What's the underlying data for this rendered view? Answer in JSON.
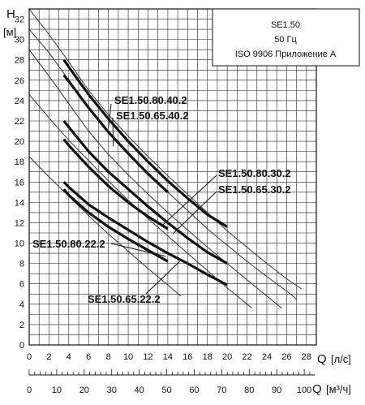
{
  "chart_data": {
    "type": "line",
    "y_axis": {
      "label": "H",
      "unit": "[м]",
      "range": [
        0,
        33
      ],
      "ticks": [
        0,
        2,
        4,
        6,
        8,
        10,
        12,
        14,
        16,
        18,
        20,
        22,
        24,
        26,
        28,
        30,
        32
      ]
    },
    "x_axis": {
      "label": "Q",
      "unit": "[л/с]",
      "range": [
        0,
        29
      ],
      "ticks": [
        0,
        2,
        4,
        6,
        8,
        10,
        12,
        14,
        16,
        18,
        20,
        22,
        24,
        26,
        28
      ]
    },
    "x_axis_secondary": {
      "label": "Q",
      "unit": "[м³/ч]",
      "ticks": [
        0,
        10,
        20,
        30,
        40,
        50,
        60,
        70,
        80,
        90,
        100
      ]
    },
    "info_box": [
      "SE1.50",
      "50 Гц",
      "ISO 9906 Приложение А"
    ],
    "grid": true,
    "thin_curves": [
      {
        "x": [
          0,
          2,
          4,
          6,
          8,
          10,
          12,
          14,
          16,
          18,
          20,
          22,
          24,
          26,
          27.5
        ],
        "y": [
          33,
          30.5,
          27.8,
          25,
          22.6,
          20.5,
          18.5,
          16.6,
          14.8,
          13,
          11.2,
          9.6,
          8,
          6.5,
          5.5
        ]
      },
      {
        "x": [
          0,
          2,
          4,
          6,
          8,
          10,
          12,
          14,
          16,
          18,
          20,
          22,
          24,
          26,
          27
        ],
        "y": [
          31,
          28.7,
          26,
          23.4,
          21,
          18.9,
          16.9,
          15,
          13.2,
          11.4,
          9.8,
          8.2,
          6.7,
          5.3,
          4.5
        ]
      },
      {
        "x": [
          0,
          2,
          4,
          6,
          8,
          10,
          12,
          14,
          16,
          18,
          20,
          22,
          24,
          25.5
        ],
        "y": [
          29,
          26.4,
          23.7,
          21,
          18.7,
          16.7,
          14.8,
          13,
          11.3,
          9.6,
          8,
          6.4,
          4.8,
          3.6
        ]
      },
      {
        "x": [
          0,
          2,
          4,
          6,
          8,
          10,
          12,
          14,
          16,
          18,
          20,
          22,
          22.5
        ],
        "y": [
          24.6,
          22.3,
          20.1,
          18.1,
          16.1,
          14.2,
          12.4,
          10.7,
          9,
          7.3,
          5.6,
          4,
          3.6
        ]
      },
      {
        "x": [
          0,
          2,
          4,
          6,
          8,
          10,
          12,
          14,
          15.3
        ],
        "y": [
          18.5,
          16.5,
          14.6,
          12.7,
          10.9,
          9.2,
          7.5,
          5.9,
          4.8
        ]
      }
    ],
    "series": [
      {
        "name": "SE1.50.80.40.2",
        "x": [
          3.5,
          4,
          6,
          8,
          10,
          12,
          14,
          16,
          18,
          20
        ],
        "y": [
          28,
          27.3,
          24.6,
          22.2,
          20,
          18,
          16.1,
          14.4,
          12.8,
          11.6
        ]
      },
      {
        "name": "SE1.50.65.40.2",
        "x": [
          3.5,
          4,
          6,
          8,
          10,
          12,
          14
        ],
        "y": [
          26.5,
          25.9,
          23.3,
          20.9,
          18.8,
          16.8,
          15
        ]
      },
      {
        "name": "SE1.50.80.30.2",
        "x": [
          3.5,
          4,
          6,
          8,
          10,
          12,
          14,
          16,
          18,
          20
        ],
        "y": [
          22,
          21.4,
          19,
          17,
          15.3,
          13.6,
          12,
          10.5,
          9.1,
          8
        ]
      },
      {
        "name": "SE1.50.65.30.2",
        "x": [
          3.5,
          4,
          6,
          8,
          10,
          12,
          14
        ],
        "y": [
          20.2,
          19.6,
          17.5,
          15.6,
          14,
          12.6,
          11.4
        ]
      },
      {
        "name": "SE1.50.80.22.2",
        "x": [
          3.5,
          4,
          6,
          8,
          10,
          12,
          14,
          16,
          18,
          20
        ],
        "y": [
          16,
          15.5,
          13.8,
          12.5,
          11.3,
          10.1,
          9,
          8,
          6.9,
          5.9
        ]
      },
      {
        "name": "SE1.50.65.22.2",
        "x": [
          3.5,
          4,
          6,
          8,
          10,
          12,
          14
        ],
        "y": [
          15.3,
          14.7,
          13,
          11.6,
          10.4,
          9.3,
          8.2
        ]
      }
    ]
  }
}
